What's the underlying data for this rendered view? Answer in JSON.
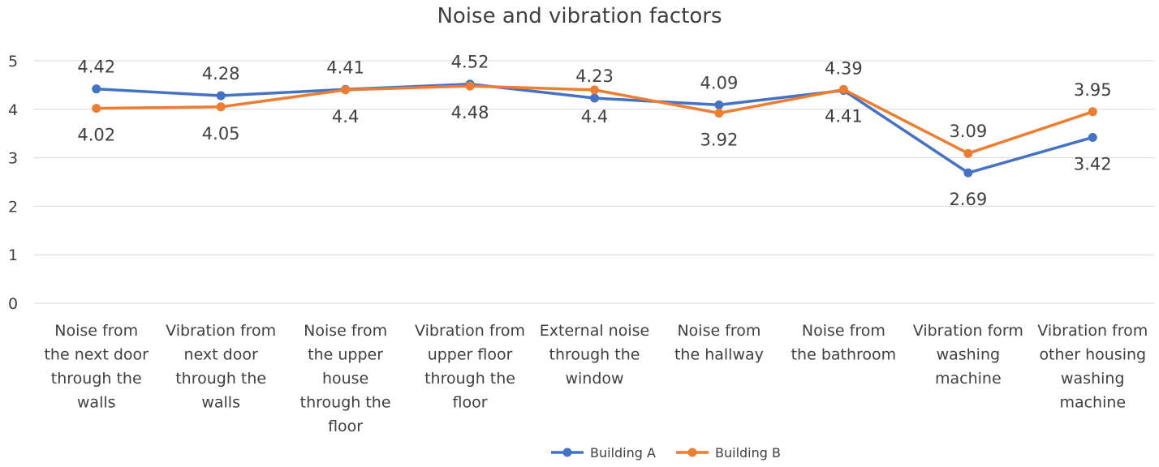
{
  "chart_data": {
    "type": "line",
    "title": "Noise and vibration factors",
    "ylim": [
      0,
      5
    ],
    "yticks": [
      "0",
      "1",
      "2",
      "3",
      "4",
      "5"
    ],
    "grid": true,
    "legend_position": "bottom",
    "categories": [
      [
        "Noise from",
        "the next door",
        "through the",
        "walls"
      ],
      [
        "Vibration from",
        "next door",
        "through the",
        "walls"
      ],
      [
        "Noise from",
        "the upper",
        "house",
        "through  the",
        "floor"
      ],
      [
        "Vibration from",
        "upper floor",
        "through the",
        "floor"
      ],
      [
        "External noise",
        "through the",
        "window"
      ],
      [
        "Noise from",
        "the hallway"
      ],
      [
        "Noise from",
        "the bathroom"
      ],
      [
        "Vibration form",
        "washing",
        "machine"
      ],
      [
        "Vibration from",
        "other housing",
        "washing",
        "machine"
      ]
    ],
    "series": [
      {
        "name": "Building A",
        "color": "#4472c4",
        "values": [
          4.42,
          4.28,
          4.41,
          4.52,
          4.23,
          4.09,
          4.39,
          2.69,
          3.42
        ],
        "labels": [
          "4.42",
          "4.28",
          "4.41",
          "4.52",
          "4.23",
          "4.09",
          "4.39",
          "2.69",
          "3.42"
        ],
        "label_side": [
          "above",
          "above",
          "above",
          "above",
          "above",
          "above",
          "above",
          "below",
          "below"
        ]
      },
      {
        "name": "Building B",
        "color": "#ed7d31",
        "values": [
          4.02,
          4.05,
          4.4,
          4.48,
          4.4,
          3.92,
          4.41,
          3.09,
          3.95
        ],
        "labels": [
          "4.02",
          "4.05",
          "4.4",
          "4.48",
          "4.4",
          "3.92",
          "4.41",
          "3.09",
          "3.95"
        ],
        "label_side": [
          "below",
          "below",
          "below",
          "below",
          "below",
          "below",
          "below",
          "above",
          "above"
        ]
      }
    ]
  }
}
